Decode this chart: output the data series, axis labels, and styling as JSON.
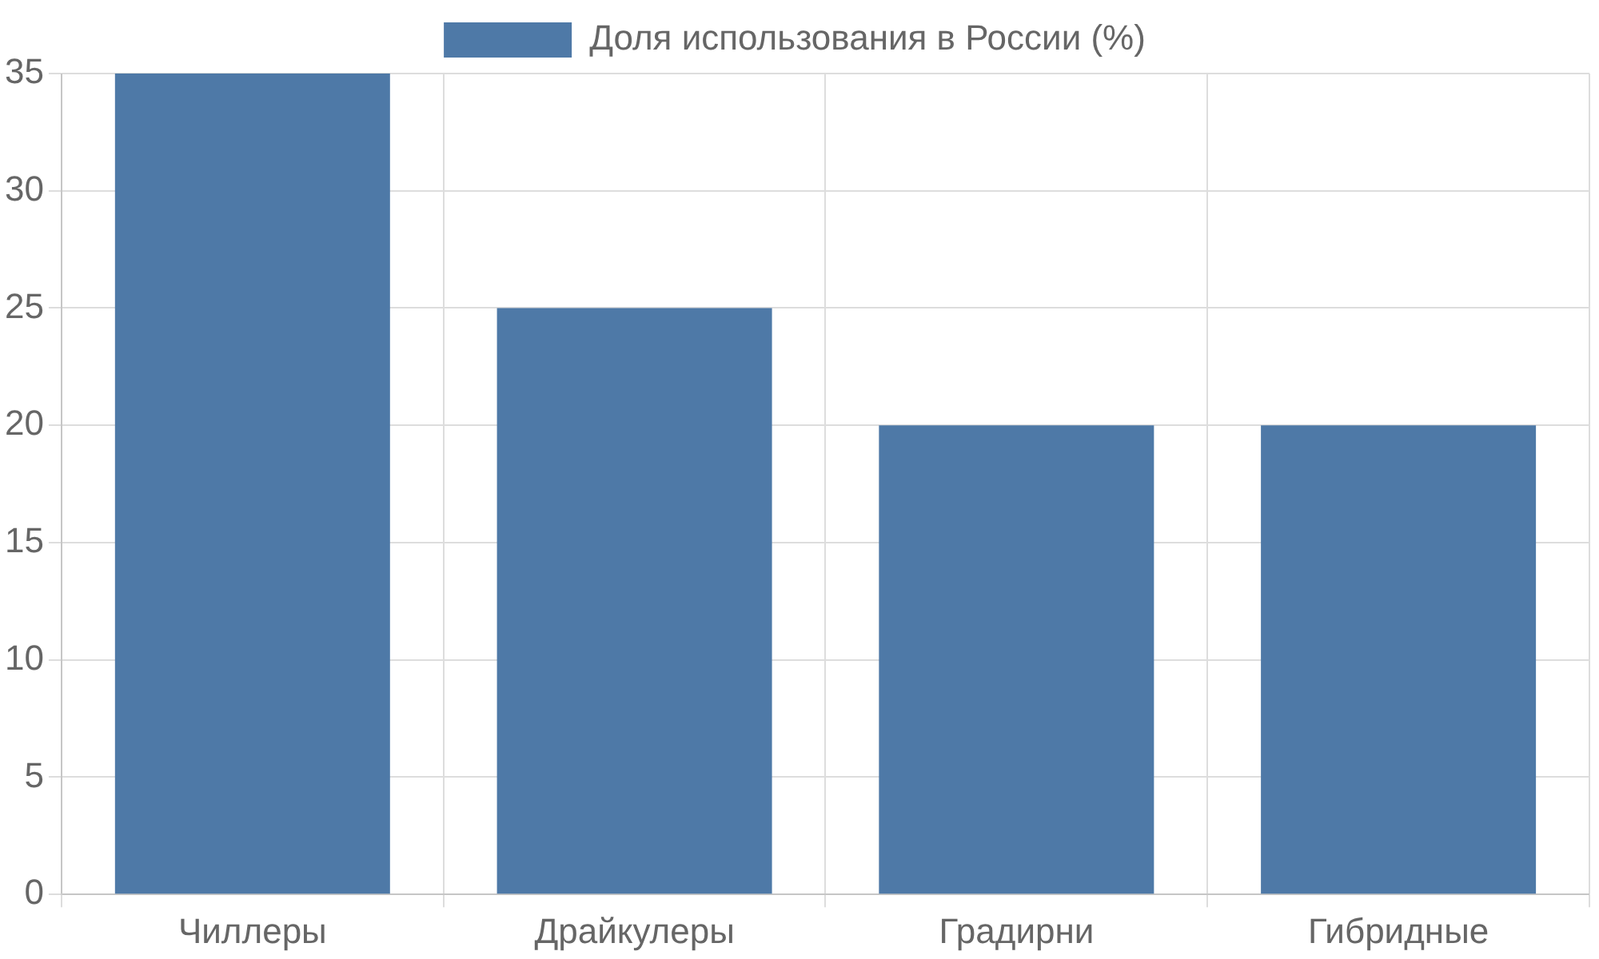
{
  "chart_data": {
    "type": "bar",
    "categories": [
      "Чиллеры",
      "Драйкулеры",
      "Градирни",
      "Гибридные"
    ],
    "series": [
      {
        "name": "Доля использования в России (%)",
        "color": "#4e79a7",
        "values": [
          35,
          25,
          20,
          20
        ]
      }
    ],
    "ylim": [
      0,
      35
    ],
    "yticks": [
      0,
      5,
      10,
      15,
      20,
      25,
      30,
      35
    ],
    "grid": true,
    "legend": "top"
  }
}
